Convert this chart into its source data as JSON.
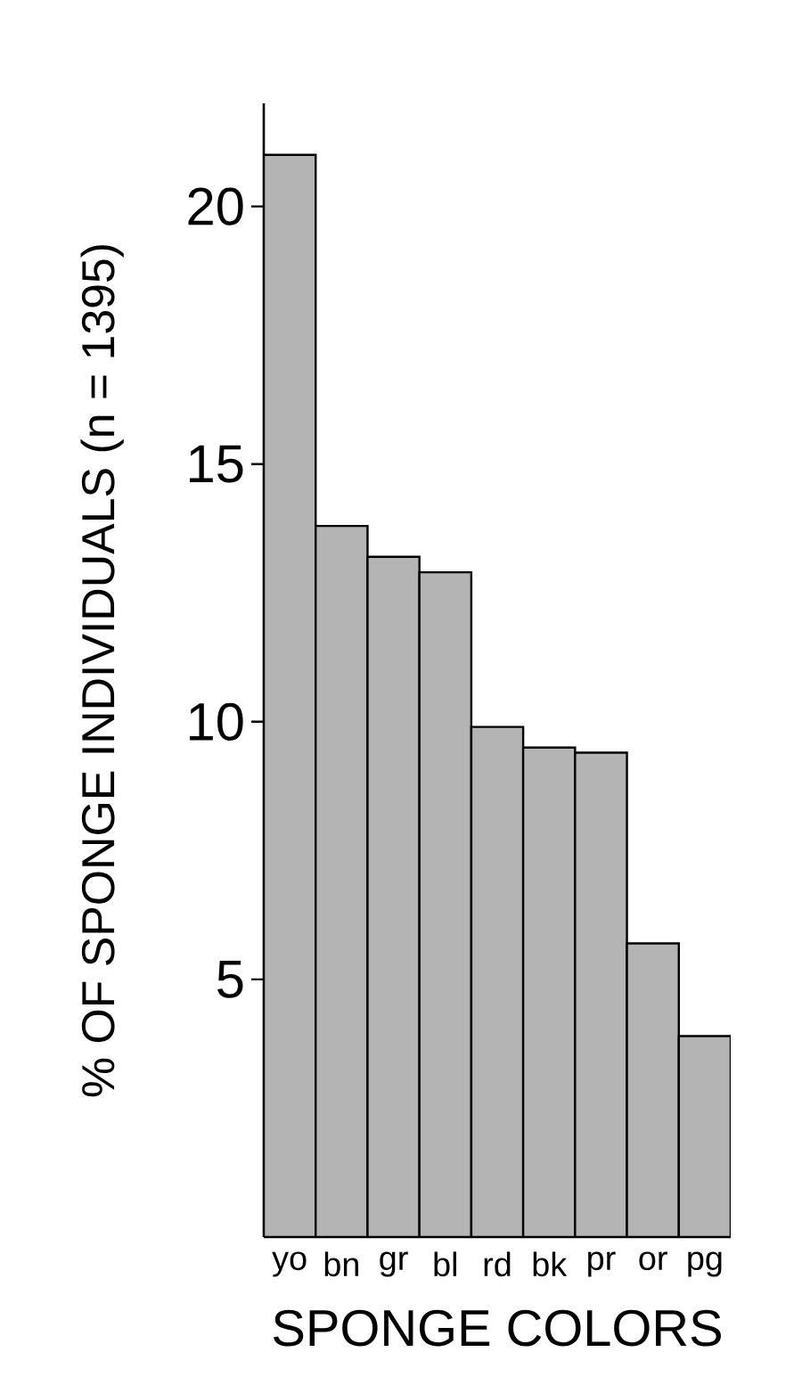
{
  "chart_data": {
    "type": "bar",
    "xlabel": "SPONGE COLORS",
    "ylabel": "% OF SPONGE INDIVIDUALS  (n = 1395)",
    "categories": [
      "yo",
      "bn",
      "gr",
      "bl",
      "rd",
      "bk",
      "pr",
      "or",
      "pg"
    ],
    "values": [
      21.0,
      13.8,
      13.2,
      12.9,
      9.9,
      9.5,
      9.4,
      5.7,
      3.9
    ],
    "color": "#b4b4b4",
    "ylim": [
      0,
      22
    ],
    "yticks": [
      5,
      10,
      15,
      20
    ]
  }
}
